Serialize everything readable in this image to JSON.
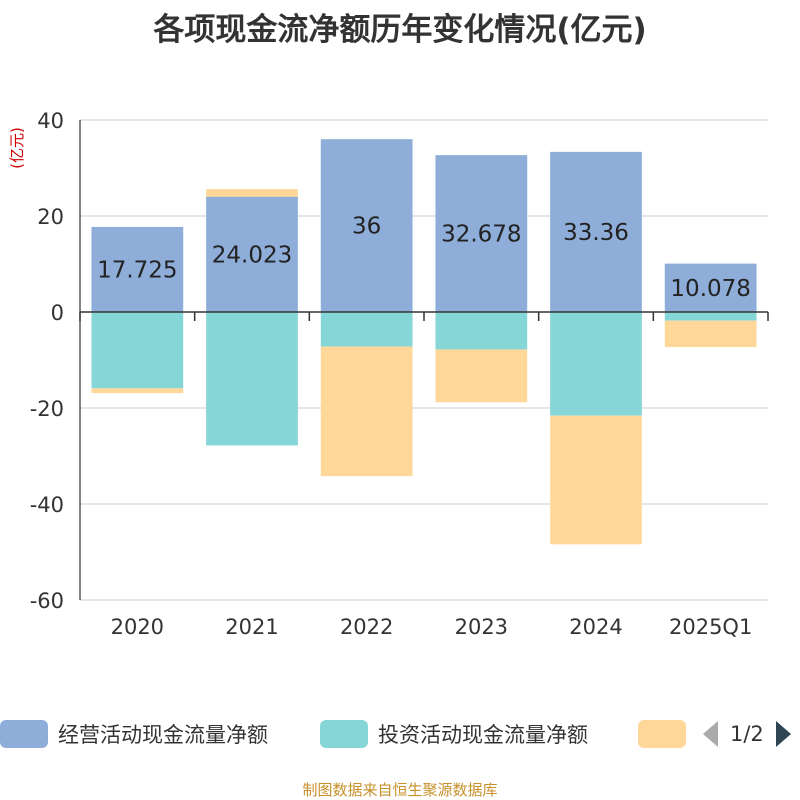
{
  "title": "各项现金流净额历年变化情况(亿元)",
  "source": "制图数据来自恒生聚源数据库",
  "legend_page": "1/2",
  "chart_data": {
    "type": "bar",
    "stacked": true,
    "title": "各项现金流净额历年变化情况(亿元)",
    "ylabel": "(亿元)",
    "xlabel": "",
    "ylim": [
      -60,
      40
    ],
    "yticks": [
      40,
      20,
      0,
      -20,
      -40,
      -60
    ],
    "grid": true,
    "legend_position": "bottom",
    "categories": [
      "2020",
      "2021",
      "2022",
      "2023",
      "2024",
      "2025Q1"
    ],
    "series": [
      {
        "name": "经营活动现金流量净额",
        "color": "#8eadd9",
        "values": [
          17.725,
          24.023,
          36,
          32.678,
          33.36,
          10.078
        ],
        "show_labels": true
      },
      {
        "name": "投资活动现金流量净额",
        "color": "#86d6d8",
        "values": [
          -15.9,
          -27.8,
          -7.2,
          -7.8,
          -21.6,
          -1.8
        ],
        "show_labels": false
      },
      {
        "name": "",
        "color": "#ffd899",
        "values": [
          -1.0,
          1.6,
          -27.0,
          -11.0,
          -26.8,
          -5.5
        ],
        "show_labels": false
      }
    ]
  }
}
